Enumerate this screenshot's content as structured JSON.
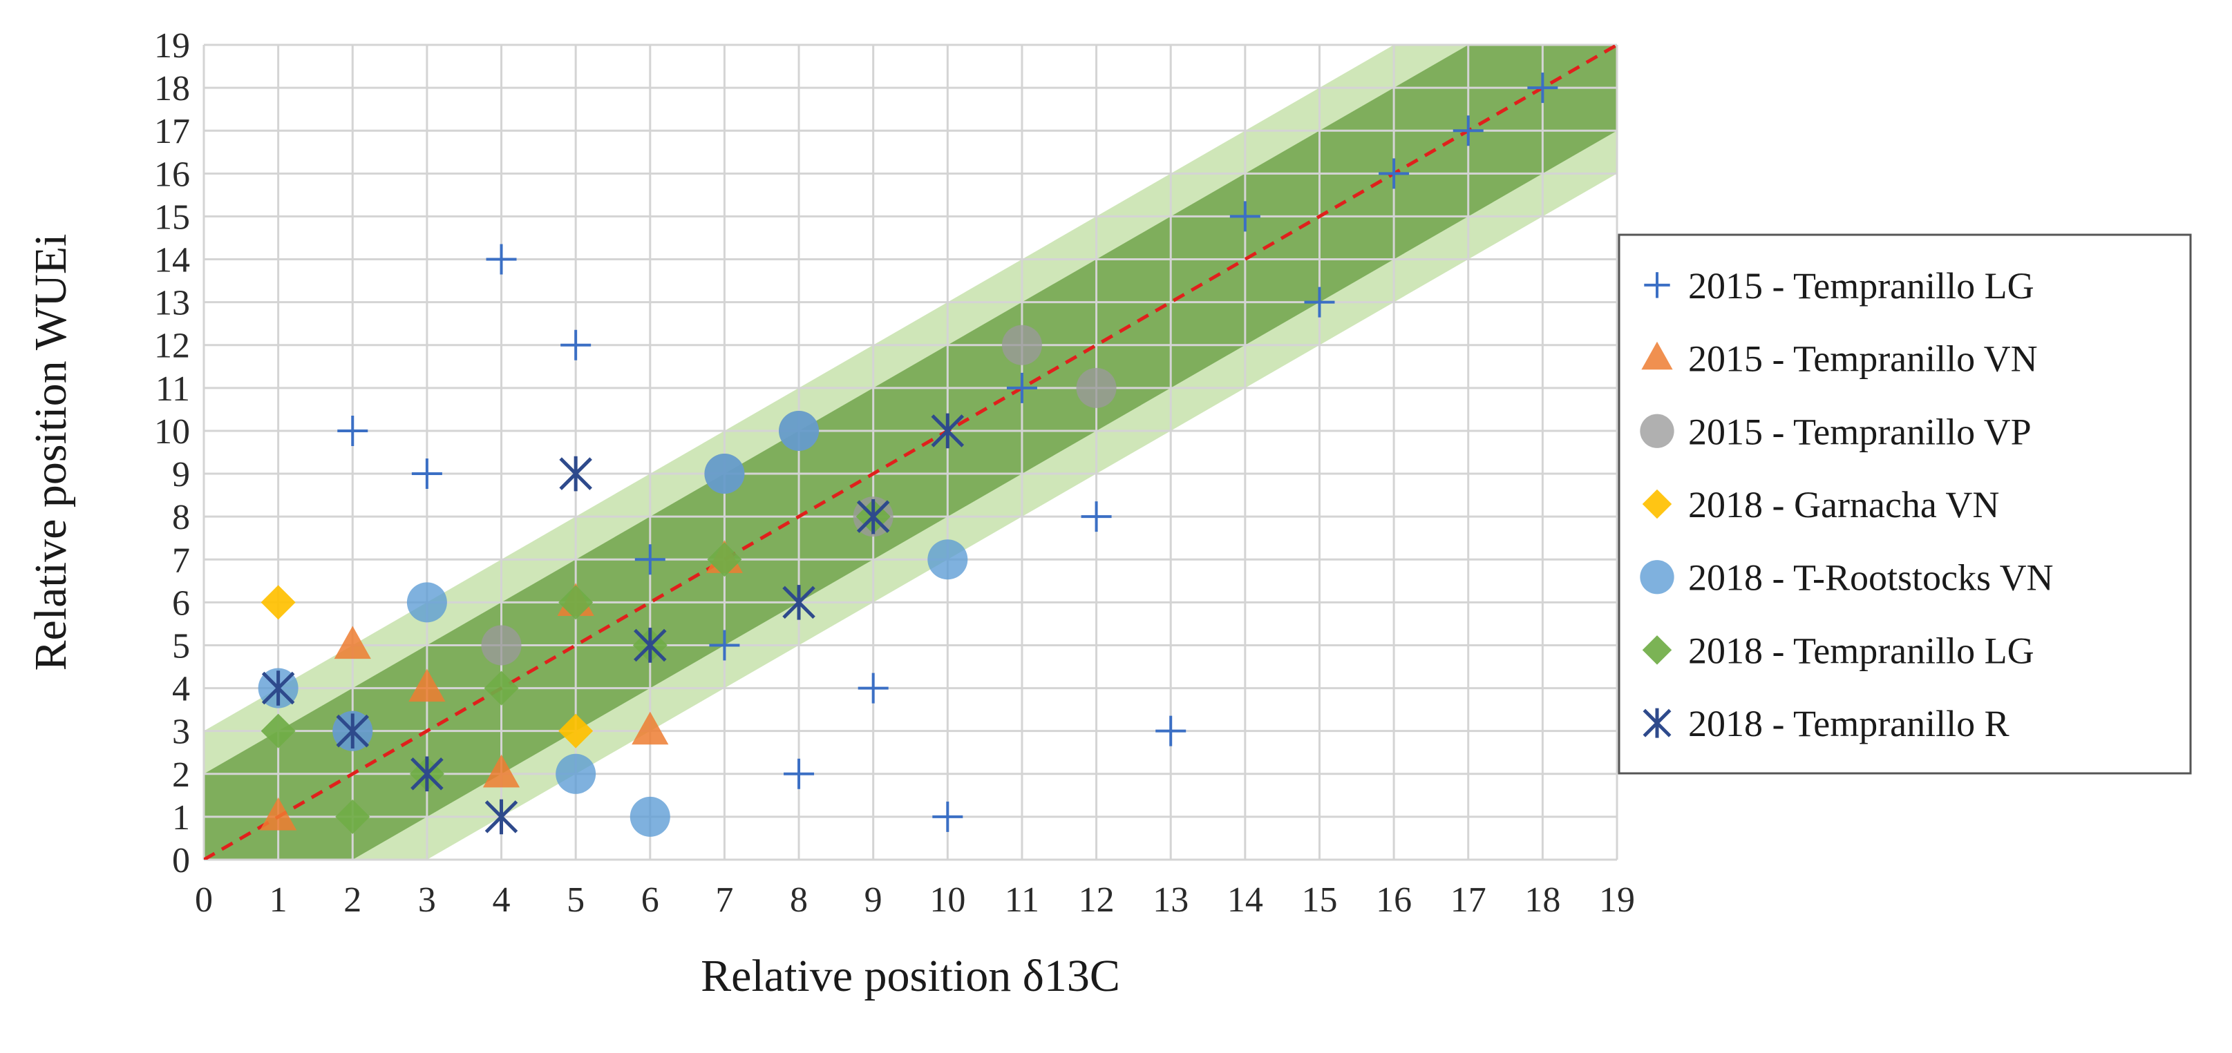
{
  "chart_data": {
    "type": "scatter",
    "title": "",
    "xlabel": "Relative position δ13C",
    "ylabel": "Relative position WUEi",
    "xlim": [
      0,
      19
    ],
    "ylim": [
      0,
      19
    ],
    "xticks": [
      0,
      1,
      2,
      3,
      4,
      5,
      6,
      7,
      8,
      9,
      10,
      11,
      12,
      13,
      14,
      15,
      16,
      17,
      18,
      19
    ],
    "yticks": [
      0,
      1,
      2,
      3,
      4,
      5,
      6,
      7,
      8,
      9,
      10,
      11,
      12,
      13,
      14,
      15,
      16,
      17,
      18,
      19
    ],
    "grid": true,
    "legend_position": "right",
    "reference_line": {
      "name": "1:1 line",
      "slope": 1,
      "intercept": 0,
      "color": "#e0201c",
      "style": "dashed"
    },
    "bands": [
      {
        "name": "outer band",
        "half_width": 3,
        "color": "#cfe6b8"
      },
      {
        "name": "inner band",
        "half_width": 2,
        "color": "#7fae5c"
      }
    ],
    "series": [
      {
        "name": "2015 - Tempranillo LG",
        "marker": "plus",
        "color": "#3b6fc4",
        "points": [
          [
            2,
            10
          ],
          [
            3,
            9
          ],
          [
            4,
            14
          ],
          [
            5,
            12
          ],
          [
            6,
            7
          ],
          [
            7,
            5
          ],
          [
            8,
            2
          ],
          [
            9,
            4
          ],
          [
            10,
            1
          ],
          [
            11,
            11
          ],
          [
            12,
            8
          ],
          [
            13,
            3
          ],
          [
            14,
            15
          ],
          [
            15,
            13
          ],
          [
            16,
            16
          ],
          [
            17,
            17
          ],
          [
            18,
            18
          ]
        ]
      },
      {
        "name": "2015 - Tempranillo VN",
        "marker": "triangle",
        "color": "#ed7d31",
        "points": [
          [
            1,
            1
          ],
          [
            2,
            5
          ],
          [
            3,
            4
          ],
          [
            4,
            2
          ],
          [
            5,
            6
          ],
          [
            6,
            3
          ],
          [
            7,
            7
          ]
        ]
      },
      {
        "name": "2015 - Tempranillo VP",
        "marker": "circle-gray",
        "color": "#9a9a9a",
        "points": [
          [
            2,
            3
          ],
          [
            4,
            5
          ],
          [
            7,
            9
          ],
          [
            8,
            10
          ],
          [
            9,
            8
          ],
          [
            11,
            12
          ],
          [
            12,
            11
          ]
        ]
      },
      {
        "name": "2018 - Garnacha VN",
        "marker": "diamond",
        "color": "#ffc000",
        "points": [
          [
            1,
            6
          ],
          [
            5,
            3
          ]
        ]
      },
      {
        "name": "2018 - T-Rootstocks VN",
        "marker": "circle",
        "color": "#5b9bd5",
        "points": [
          [
            1,
            4
          ],
          [
            2,
            3
          ],
          [
            3,
            6
          ],
          [
            5,
            2
          ],
          [
            6,
            1
          ],
          [
            7,
            9
          ],
          [
            8,
            10
          ],
          [
            10,
            7
          ]
        ]
      },
      {
        "name": "2018 - Tempranillo LG",
        "marker": "diamond",
        "color": "#70ad47",
        "points": [
          [
            1,
            3
          ],
          [
            2,
            1
          ],
          [
            3,
            2
          ],
          [
            4,
            4
          ],
          [
            5,
            6
          ],
          [
            6,
            5
          ],
          [
            7,
            7
          ],
          [
            9,
            8
          ]
        ]
      },
      {
        "name": "2018 - Tempranillo R",
        "marker": "asterisk",
        "color": "#2e4a8c",
        "points": [
          [
            1,
            4
          ],
          [
            2,
            3
          ],
          [
            3,
            2
          ],
          [
            4,
            1
          ],
          [
            5,
            9
          ],
          [
            6,
            5
          ],
          [
            8,
            6
          ],
          [
            9,
            8
          ],
          [
            10,
            10
          ]
        ]
      }
    ]
  }
}
